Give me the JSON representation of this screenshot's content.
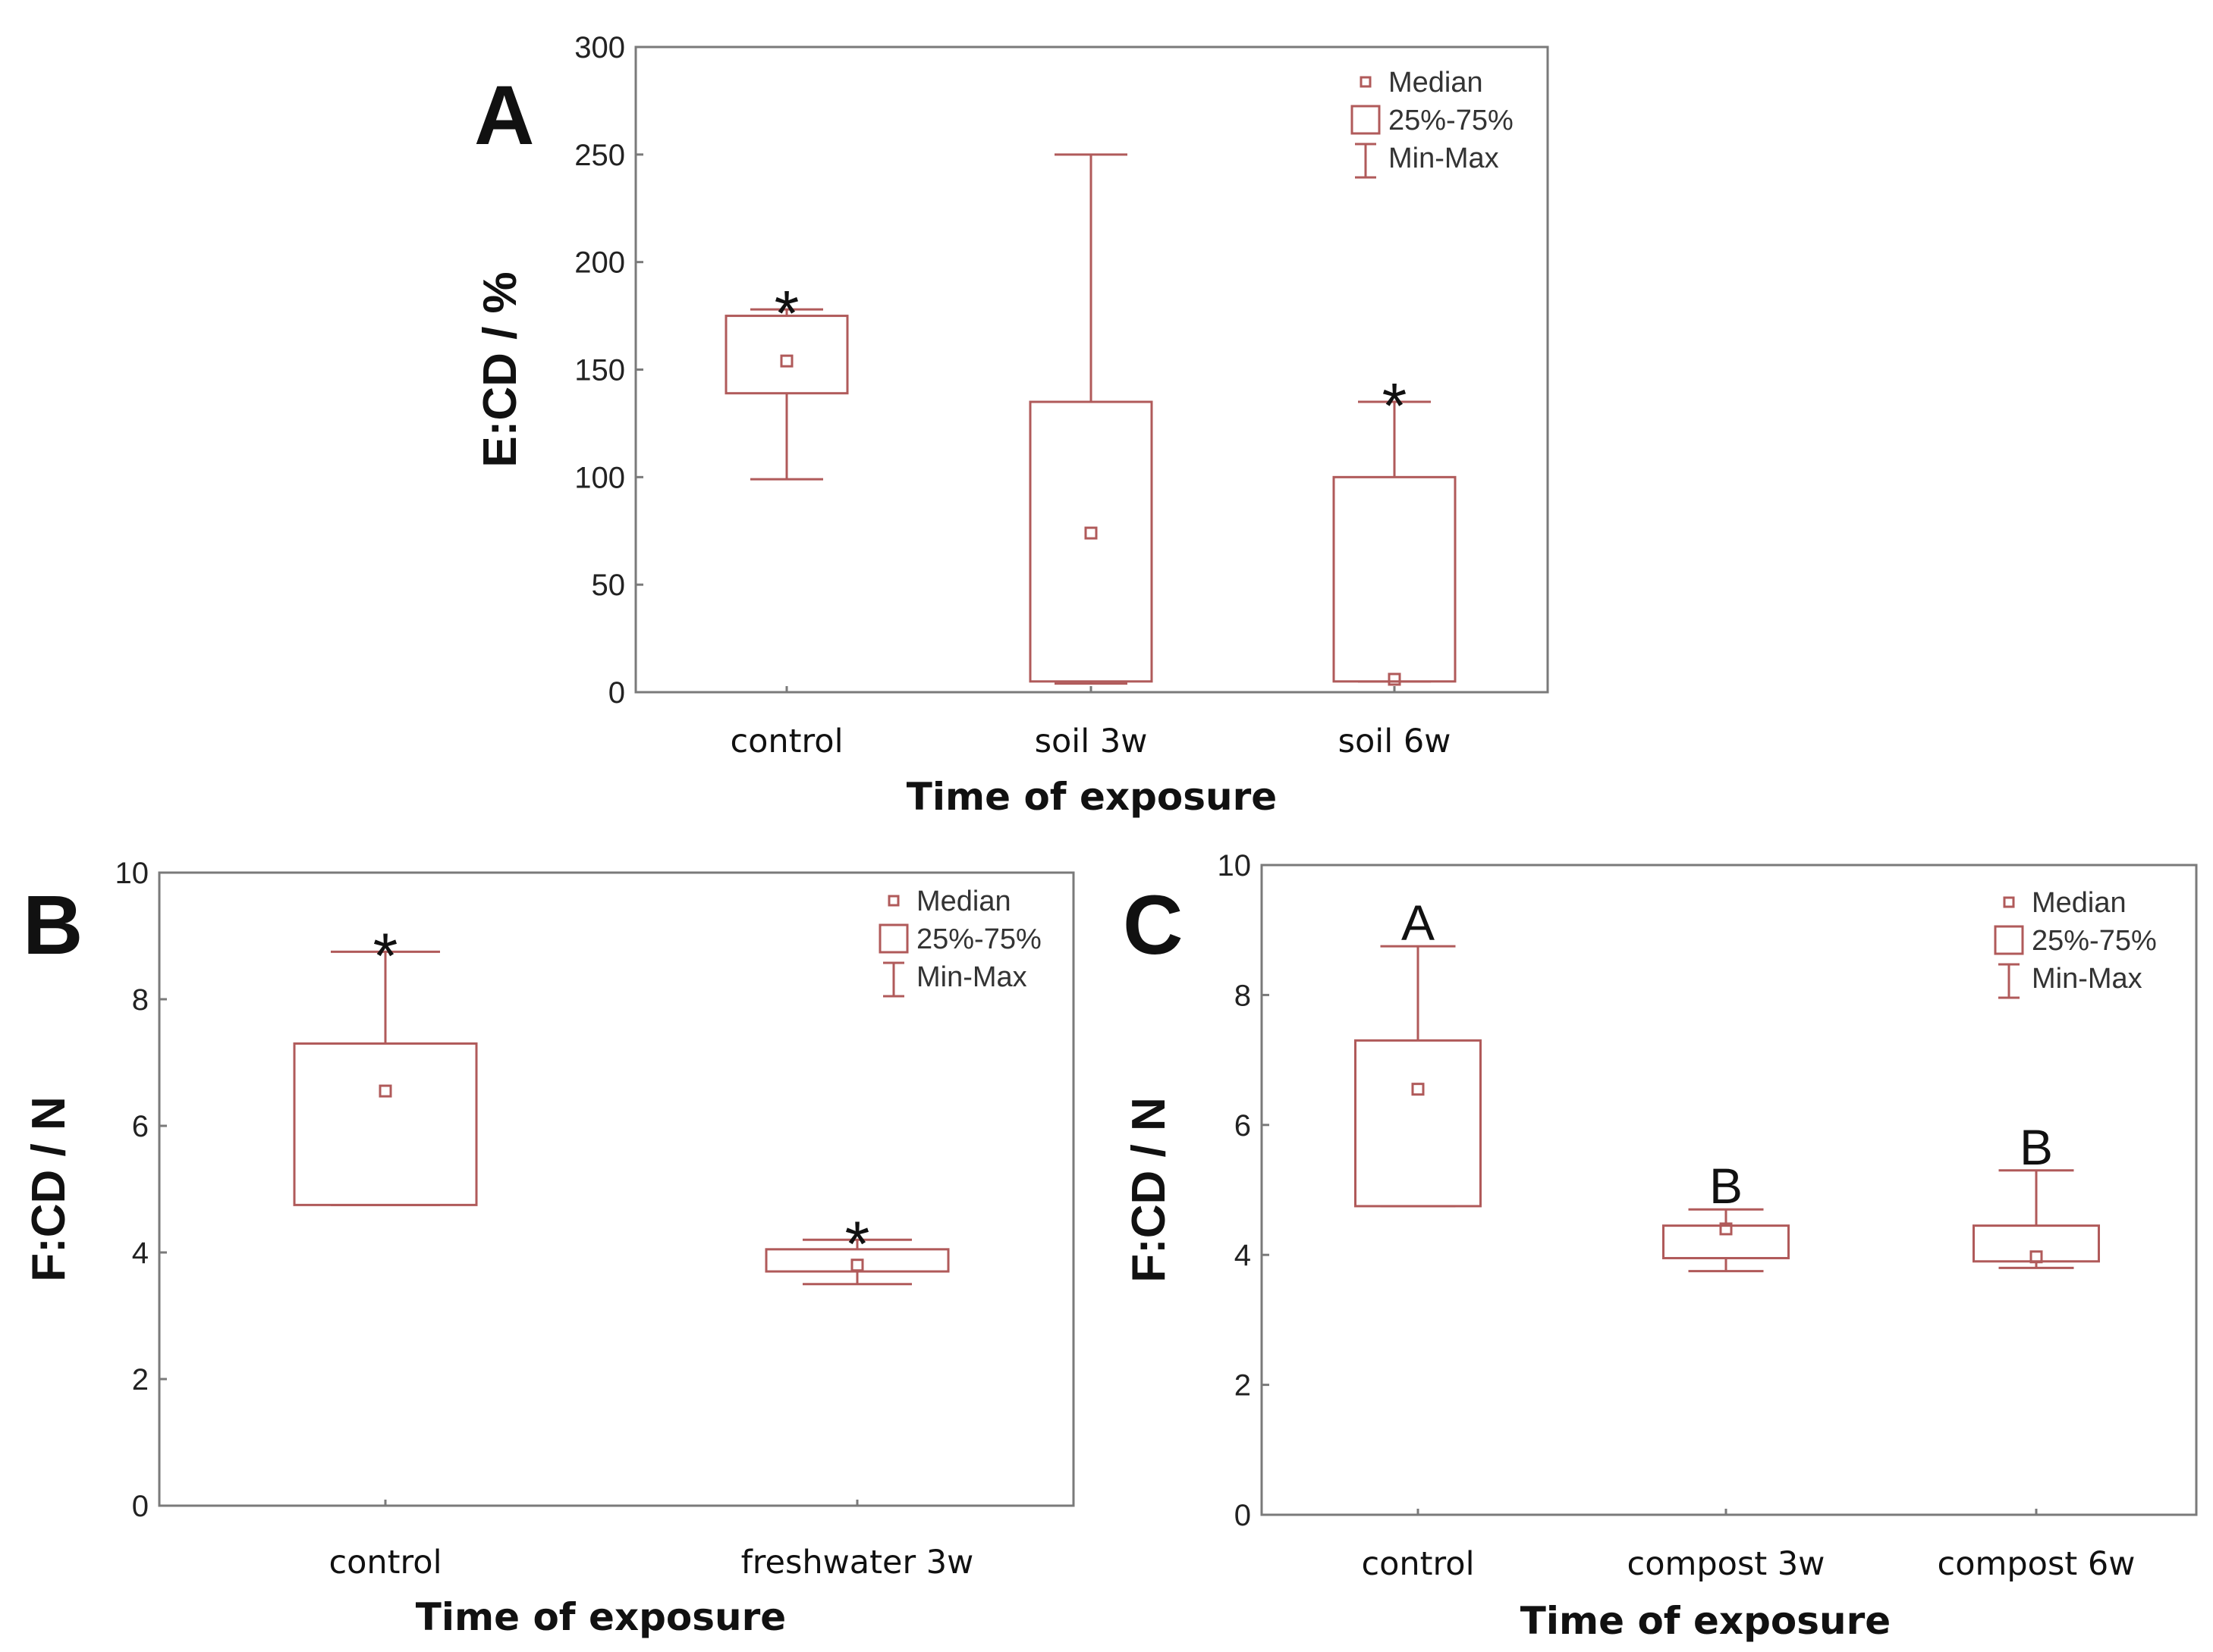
{
  "chart_data": [
    {
      "panel": "A",
      "type": "box",
      "title": "",
      "xlabel": "Time of exposure",
      "ylabel": "E:CD / %",
      "ylim": [
        0,
        300
      ],
      "yticks": [
        0,
        50,
        100,
        150,
        200,
        250,
        300
      ],
      "legend": {
        "position": "top-right",
        "items": [
          "Median",
          "25%-75%",
          "Min-Max"
        ]
      },
      "categories": [
        "control",
        "soil 3w",
        "soil 6w"
      ],
      "boxes": [
        {
          "category": "control",
          "min": 99,
          "q1": 139,
          "median": 154,
          "q3": 175,
          "max": 178,
          "annotation": "*"
        },
        {
          "category": "soil 3w",
          "min": 4,
          "q1": 5,
          "median": 74,
          "q3": 135,
          "max": 250,
          "annotation": ""
        },
        {
          "category": "soil 6w",
          "min": 5,
          "q1": 5,
          "median": 6,
          "q3": 100,
          "max": 135,
          "annotation": "*"
        }
      ]
    },
    {
      "panel": "B",
      "type": "box",
      "title": "",
      "xlabel": "Time of exposure",
      "ylabel": "F:CD / N",
      "ylim": [
        0,
        10
      ],
      "yticks": [
        0,
        2,
        4,
        6,
        8,
        10
      ],
      "legend": {
        "position": "top-right",
        "items": [
          "Median",
          "25%-75%",
          "Min-Max"
        ]
      },
      "categories": [
        "control",
        "freshwater 3w"
      ],
      "boxes": [
        {
          "category": "control",
          "min": 4.75,
          "q1": 4.75,
          "median": 6.55,
          "q3": 7.3,
          "max": 8.75,
          "annotation": "*"
        },
        {
          "category": "freshwater 3w",
          "min": 3.5,
          "q1": 3.7,
          "median": 3.8,
          "q3": 4.05,
          "max": 4.2,
          "annotation": "*"
        }
      ]
    },
    {
      "panel": "C",
      "type": "box",
      "title": "",
      "xlabel": "Time of exposure",
      "ylabel": "F:CD / N",
      "ylim": [
        0,
        10
      ],
      "yticks": [
        0,
        2,
        4,
        6,
        8,
        10
      ],
      "legend": {
        "position": "top-right",
        "items": [
          "Median",
          "25%-75%",
          "Min-Max"
        ]
      },
      "categories": [
        "control",
        "compost 3w",
        "compost 6w"
      ],
      "boxes": [
        {
          "category": "control",
          "min": 4.75,
          "q1": 4.75,
          "median": 6.55,
          "q3": 7.3,
          "max": 8.75,
          "annotation": "A"
        },
        {
          "category": "compost 3w",
          "min": 3.75,
          "q1": 3.95,
          "median": 4.4,
          "q3": 4.45,
          "max": 4.7,
          "annotation": "B"
        },
        {
          "category": "compost 6w",
          "min": 3.8,
          "q1": 3.9,
          "median": 3.97,
          "q3": 4.45,
          "max": 5.3,
          "annotation": "B"
        }
      ]
    }
  ],
  "colors": {
    "box": "#b05a5a",
    "axis": "#7a7a7a",
    "text": "#111111"
  }
}
